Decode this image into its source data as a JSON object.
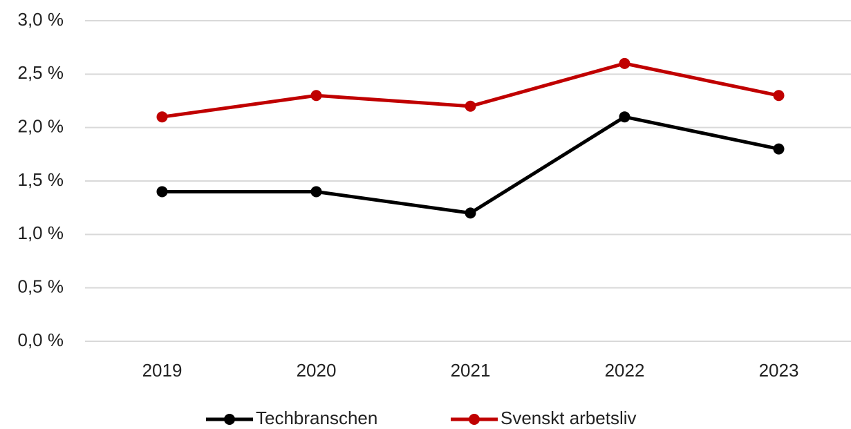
{
  "chart_data": {
    "type": "line",
    "categories": [
      "2019",
      "2020",
      "2021",
      "2022",
      "2023"
    ],
    "series": [
      {
        "name": "Techbranschen",
        "color": "#000000",
        "values": [
          1.4,
          1.4,
          1.2,
          2.1,
          1.8
        ]
      },
      {
        "name": "Svenskt arbetsliv",
        "color": "#c00000",
        "values": [
          2.1,
          2.3,
          2.2,
          2.6,
          2.3
        ]
      }
    ],
    "ylim": [
      0,
      3
    ],
    "yticks": [
      {
        "value": 0,
        "label": "0,0 %"
      },
      {
        "value": 0.5,
        "label": "0,5 %"
      },
      {
        "value": 1,
        "label": "1,0 %"
      },
      {
        "value": 1.5,
        "label": "1,5 %"
      },
      {
        "value": 2,
        "label": "2,0 %"
      },
      {
        "value": 2.5,
        "label": "2,5 %"
      },
      {
        "value": 3,
        "label": "3,0 %"
      }
    ],
    "grid": true,
    "legend": "bottom"
  }
}
